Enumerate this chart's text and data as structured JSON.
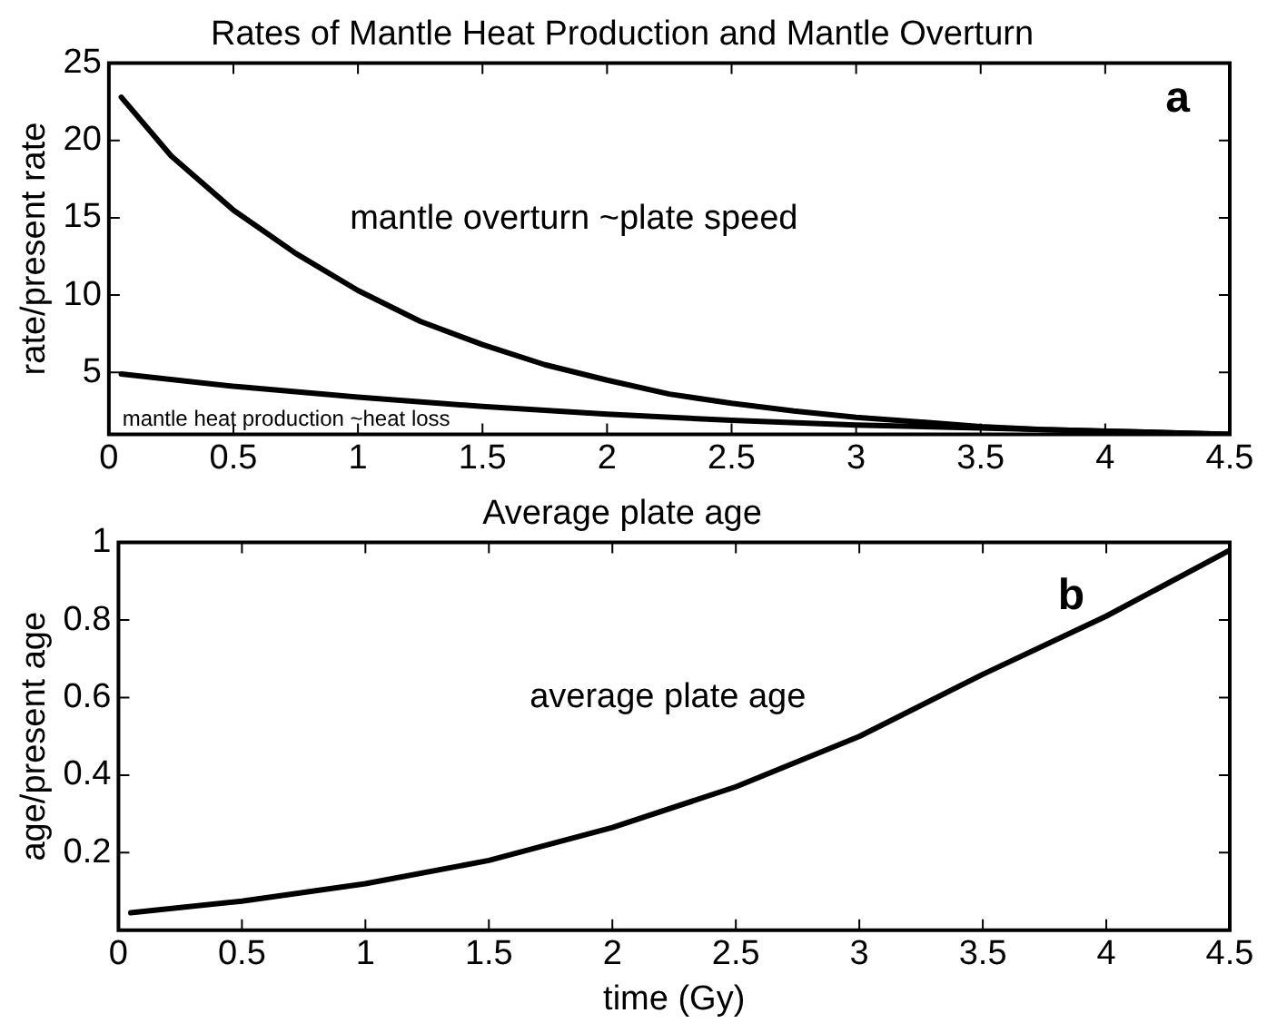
{
  "chart_data": [
    {
      "type": "line",
      "title": "Rates of Mantle Heat Production and Mantle Overturn",
      "ylabel": "rate/present rate",
      "annotations": [
        "a"
      ],
      "xlim": [
        0,
        4.5
      ],
      "xticks": [
        0,
        0.5,
        1,
        1.5,
        2,
        2.5,
        3,
        3.5,
        4,
        4.5
      ],
      "ylim": [
        1,
        25
      ],
      "yticks": [
        5,
        10,
        15,
        20,
        25
      ],
      "grid": false,
      "legend": false,
      "marker": "none",
      "line_style": "solid",
      "series": [
        {
          "name": "mantle overturn ~plate speed",
          "color": "#000000",
          "x": [
            0.05,
            0.25,
            0.5,
            0.75,
            1.0,
            1.25,
            1.5,
            1.75,
            2.0,
            2.25,
            2.5,
            2.75,
            3.0,
            3.25,
            3.5,
            3.75,
            4.0,
            4.25,
            4.5
          ],
          "values": [
            22.8,
            19.0,
            15.5,
            12.7,
            10.3,
            8.3,
            6.8,
            5.5,
            4.5,
            3.6,
            3.0,
            2.5,
            2.1,
            1.8,
            1.5,
            1.3,
            1.2,
            1.1,
            1.0
          ]
        },
        {
          "name": "mantle heat production ~heat loss",
          "color": "#000000",
          "x": [
            0.05,
            0.5,
            1.0,
            1.5,
            2.0,
            2.5,
            3.0,
            3.5,
            4.0,
            4.5
          ],
          "values": [
            4.9,
            4.1,
            3.4,
            2.8,
            2.3,
            1.9,
            1.6,
            1.4,
            1.2,
            1.0
          ]
        }
      ]
    },
    {
      "type": "line",
      "title": "Average plate age",
      "xlabel": "time (Gy)",
      "ylabel": "age/present age",
      "annotations": [
        "b"
      ],
      "xlim": [
        0,
        4.5
      ],
      "xticks": [
        0,
        0.5,
        1,
        1.5,
        2,
        2.5,
        3,
        3.5,
        4,
        4.5
      ],
      "ylim": [
        0,
        1
      ],
      "yticks": [
        0.2,
        0.4,
        0.6,
        0.8,
        1
      ],
      "grid": false,
      "legend": false,
      "marker": "none",
      "line_style": "solid",
      "series": [
        {
          "name": "average plate age",
          "color": "#000000",
          "x": [
            0.05,
            0.5,
            1.0,
            1.5,
            2.0,
            2.5,
            3.0,
            3.5,
            4.0,
            4.5
          ],
          "values": [
            0.045,
            0.075,
            0.12,
            0.18,
            0.265,
            0.37,
            0.5,
            0.66,
            0.81,
            0.98
          ]
        }
      ]
    }
  ]
}
